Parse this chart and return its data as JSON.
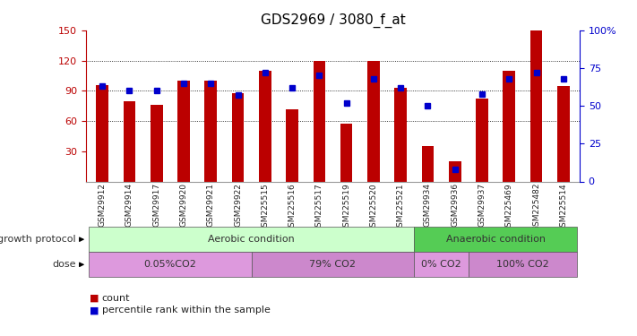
{
  "title": "GDS2969 / 3080_f_at",
  "samples": [
    "GSM29912",
    "GSM29914",
    "GSM29917",
    "GSM29920",
    "GSM29921",
    "GSM29922",
    "GSM225515",
    "GSM225516",
    "GSM225517",
    "GSM225519",
    "GSM225520",
    "GSM225521",
    "GSM29934",
    "GSM29936",
    "GSM29937",
    "GSM225469",
    "GSM225482",
    "GSM225514"
  ],
  "counts": [
    96,
    80,
    76,
    100,
    100,
    88,
    110,
    72,
    120,
    57,
    120,
    93,
    35,
    20,
    82,
    110,
    150,
    95
  ],
  "percentiles": [
    63,
    60,
    60,
    65,
    65,
    57,
    72,
    62,
    70,
    52,
    68,
    62,
    50,
    8,
    58,
    68,
    72,
    68
  ],
  "ylim_left": [
    0,
    150
  ],
  "ylim_right": [
    0,
    100
  ],
  "yticks_left": [
    30,
    60,
    90,
    120,
    150
  ],
  "yticks_right": [
    0,
    25,
    50,
    75,
    100
  ],
  "bar_color": "#bb0000",
  "dot_color": "#0000cc",
  "bg_color": "#ffffff",
  "growth_protocol_label": "growth protocol",
  "dose_label": "dose",
  "dose_groups": [
    {
      "label": "0.05%CO2",
      "start": 0,
      "end": 6,
      "color": "#dd99dd"
    },
    {
      "label": "79% CO2",
      "start": 6,
      "end": 12,
      "color": "#cc88cc"
    },
    {
      "label": "0% CO2",
      "start": 12,
      "end": 14,
      "color": "#dd99dd"
    },
    {
      "label": "100% CO2",
      "start": 14,
      "end": 18,
      "color": "#cc88cc"
    }
  ],
  "growth_groups": [
    {
      "label": "Aerobic condition",
      "start": 0,
      "end": 12,
      "color": "#ccffcc"
    },
    {
      "label": "Anaerobic condition",
      "start": 12,
      "end": 18,
      "color": "#55cc55"
    }
  ],
  "legend_count_color": "#bb0000",
  "legend_dot_color": "#0000cc",
  "legend_count_label": "count",
  "legend_dot_label": "percentile rank within the sample",
  "title_color": "#000000",
  "title_fontsize": 11
}
